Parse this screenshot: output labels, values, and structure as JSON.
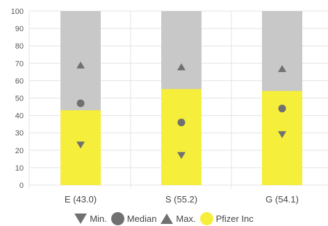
{
  "colors": {
    "company": "#f5ee3b",
    "remainder": "#c8c8c8",
    "marker": "#707070",
    "grid": "#e3e3e3"
  },
  "chart_data": {
    "type": "bar",
    "categories": [
      "E (43.0)",
      "S (55.2)",
      "G (54.1)"
    ],
    "ylim": [
      0,
      100
    ],
    "yticks": [
      0,
      10,
      20,
      30,
      40,
      50,
      60,
      70,
      80,
      90,
      100
    ],
    "grid": true,
    "legend_position": "bottom",
    "series": [
      {
        "name": "Pfizer Inc",
        "kind": "bar",
        "values": [
          43.0,
          55.2,
          54.1
        ]
      },
      {
        "name": "Min.",
        "kind": "marker",
        "marker": "triangle-down",
        "values": [
          23,
          17,
          29
        ]
      },
      {
        "name": "Median",
        "kind": "marker",
        "marker": "circle",
        "values": [
          47,
          36,
          44
        ]
      },
      {
        "name": "Max.",
        "kind": "marker",
        "marker": "triangle-up",
        "values": [
          69,
          68,
          67
        ]
      }
    ]
  },
  "legend": [
    {
      "label": "Min.",
      "icon": "triangle-down"
    },
    {
      "label": "Median",
      "icon": "circle"
    },
    {
      "label": "Max.",
      "icon": "triangle-up"
    },
    {
      "label": "Pfizer Inc",
      "icon": "circle"
    }
  ]
}
